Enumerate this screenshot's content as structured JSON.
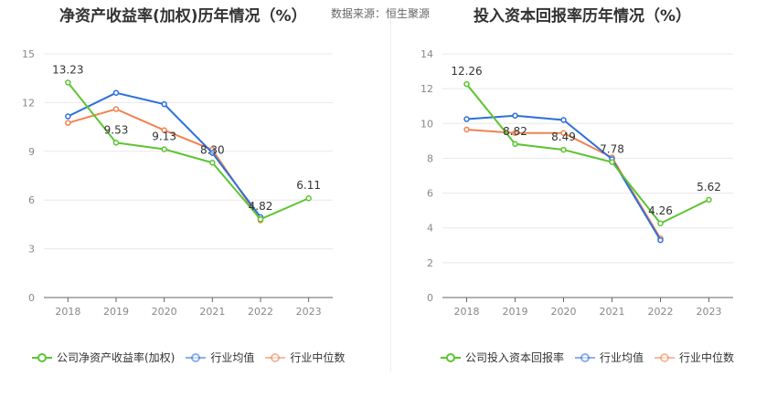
{
  "header": {
    "source_label": "数据来源：恒生聚源"
  },
  "chart_data": [
    {
      "type": "line",
      "title": "净资产收益率(加权)历年情况（%）",
      "categories": [
        "2018",
        "2019",
        "2020",
        "2021",
        "2022",
        "2023"
      ],
      "ylim": [
        0,
        15
      ],
      "yticks": [
        0,
        3,
        6,
        9,
        12,
        15
      ],
      "grid": true,
      "legend_position": "bottom",
      "series": [
        {
          "name": "公司净资产收益率(加权)",
          "color": "#5cc431",
          "values": [
            13.23,
            9.53,
            9.13,
            8.3,
            4.82,
            6.11
          ],
          "labels": [
            "13.23",
            "9.53",
            "9.13",
            "8.30",
            "4.82",
            "6.11"
          ]
        },
        {
          "name": "行业均值",
          "color": "#2e6fdb",
          "values": [
            11.15,
            12.6,
            11.9,
            8.9,
            4.95,
            null
          ]
        },
        {
          "name": "行业中位数",
          "color": "#f08352",
          "values": [
            10.75,
            11.6,
            10.3,
            9.1,
            4.75,
            null
          ]
        }
      ]
    },
    {
      "type": "line",
      "title": "投入资本回报率历年情况（%）",
      "categories": [
        "2018",
        "2019",
        "2020",
        "2021",
        "2022",
        "2023"
      ],
      "ylim": [
        0,
        14
      ],
      "yticks": [
        0,
        2,
        4,
        6,
        8,
        10,
        12,
        14
      ],
      "grid": true,
      "legend_position": "bottom",
      "series": [
        {
          "name": "公司投入资本回报率",
          "color": "#5cc431",
          "values": [
            12.26,
            8.82,
            8.49,
            7.78,
            4.26,
            5.62
          ],
          "labels": [
            "12.26",
            "8.82",
            "8.49",
            "7.78",
            "4.26",
            "5.62"
          ]
        },
        {
          "name": "行业均值",
          "color": "#2e6fdb",
          "values": [
            10.25,
            10.45,
            10.2,
            7.95,
            3.3,
            null
          ]
        },
        {
          "name": "行业中位数",
          "color": "#f08352",
          "values": [
            9.65,
            9.45,
            9.45,
            8.05,
            3.4,
            null
          ]
        }
      ]
    }
  ]
}
